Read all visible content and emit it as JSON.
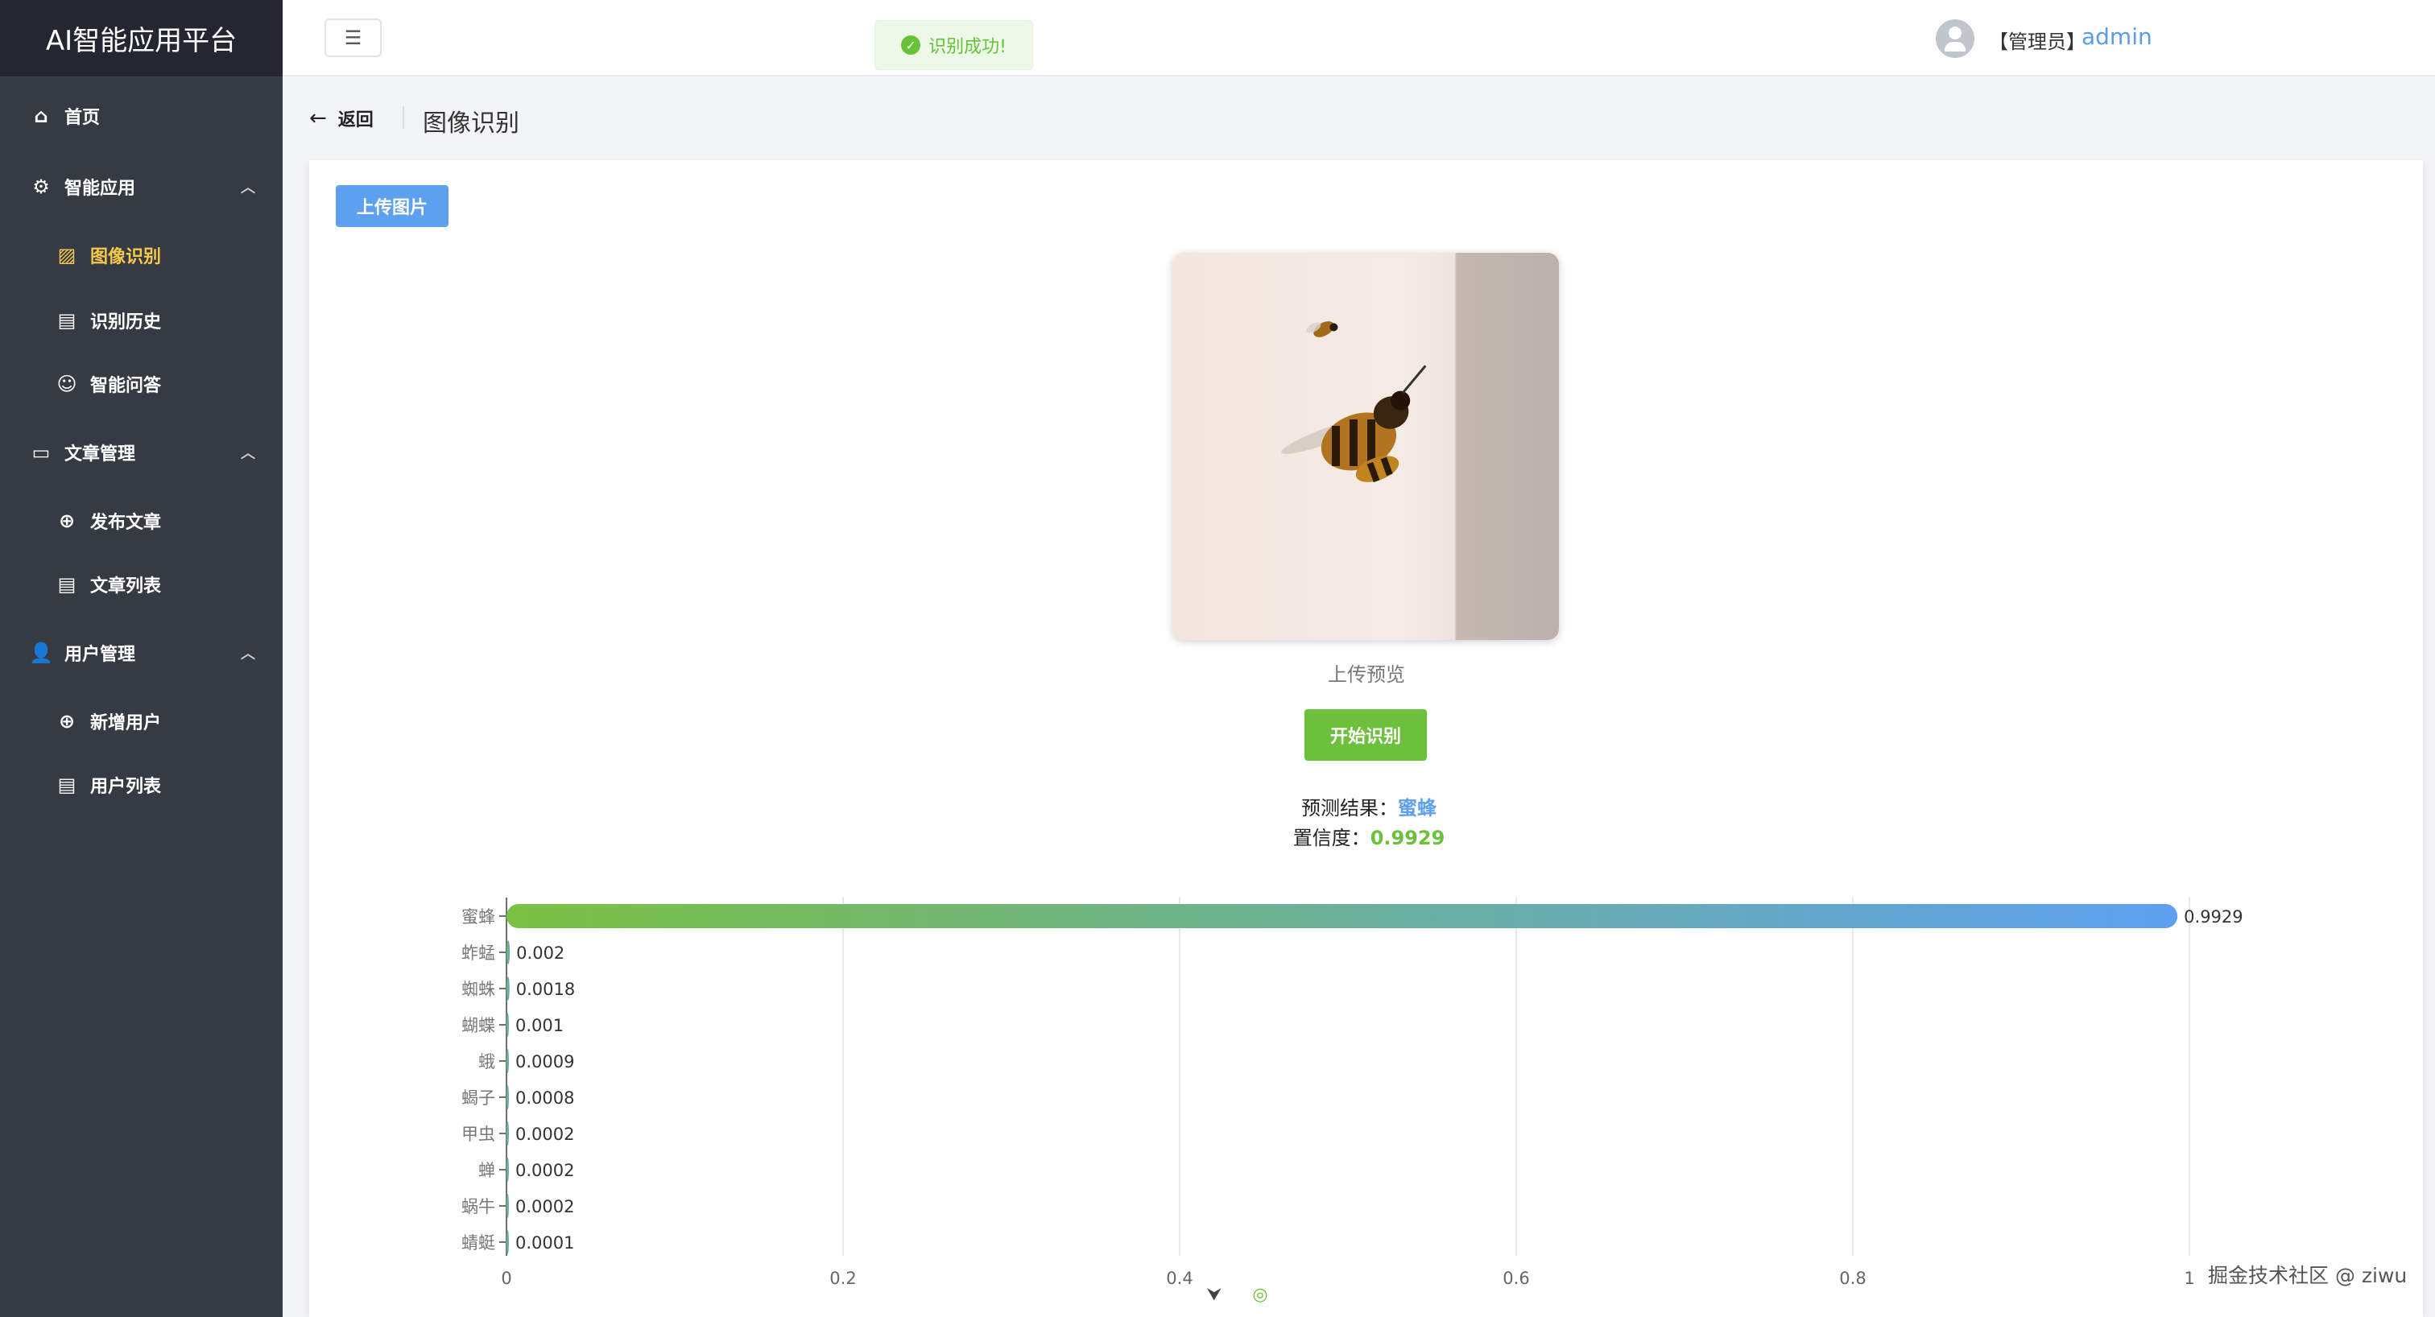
{
  "app": {
    "title": "AI智能应用平台"
  },
  "sidebar": {
    "items": [
      {
        "label": "首页",
        "icon": "home-icon",
        "level": "top"
      },
      {
        "label": "智能应用",
        "icon": "chip-icon",
        "level": "top",
        "expanded": true
      },
      {
        "label": "图像识别",
        "icon": "image-icon",
        "level": "sub",
        "active": true
      },
      {
        "label": "识别历史",
        "icon": "clipboard-icon",
        "level": "sub"
      },
      {
        "label": "智能问答",
        "icon": "user-outline-icon",
        "level": "sub"
      },
      {
        "label": "文章管理",
        "icon": "document-icon",
        "level": "top",
        "expanded": true
      },
      {
        "label": "发布文章",
        "icon": "plus-circle-icon",
        "level": "sub"
      },
      {
        "label": "文章列表",
        "icon": "clipboard-icon",
        "level": "sub"
      },
      {
        "label": "用户管理",
        "icon": "user-icon",
        "level": "top",
        "expanded": true
      },
      {
        "label": "新增用户",
        "icon": "plus-circle-icon",
        "level": "sub"
      },
      {
        "label": "用户列表",
        "icon": "clipboard-icon",
        "level": "sub"
      }
    ]
  },
  "header": {
    "toast": "识别成功!",
    "role": "【管理员】",
    "username": "admin"
  },
  "page": {
    "back": "返回",
    "title": "图像识别",
    "upload_button": "上传图片",
    "preview_caption": "上传预览",
    "start_button": "开始识别",
    "result_label": "预测结果：",
    "result_value": "蜜蜂",
    "confidence_label": "置信度：",
    "confidence_value": "0.9929"
  },
  "colors": {
    "accent_blue": "#5ea0f0",
    "success_green": "#6cc03c",
    "active_menu": "#f5c94a"
  },
  "chart_data": {
    "type": "bar",
    "orientation": "horizontal",
    "categories": [
      "蜜蜂",
      "蚱蜢",
      "蜘蛛",
      "蝴蝶",
      "蛾",
      "蝎子",
      "甲虫",
      "蝉",
      "蜗牛",
      "蜻蜓"
    ],
    "values": [
      0.9929,
      0.002,
      0.0018,
      0.001,
      0.0009,
      0.0008,
      0.0002,
      0.0002,
      0.0002,
      0.0001
    ],
    "xlim": [
      0,
      1
    ],
    "xticks": [
      "0",
      "0.2",
      "0.4",
      "0.6",
      "0.8",
      "1"
    ],
    "grid": true,
    "bar_gradient": [
      "#7ac143",
      "#5ea0f0"
    ]
  },
  "watermark": "掘金技术社区 @ ziwu"
}
